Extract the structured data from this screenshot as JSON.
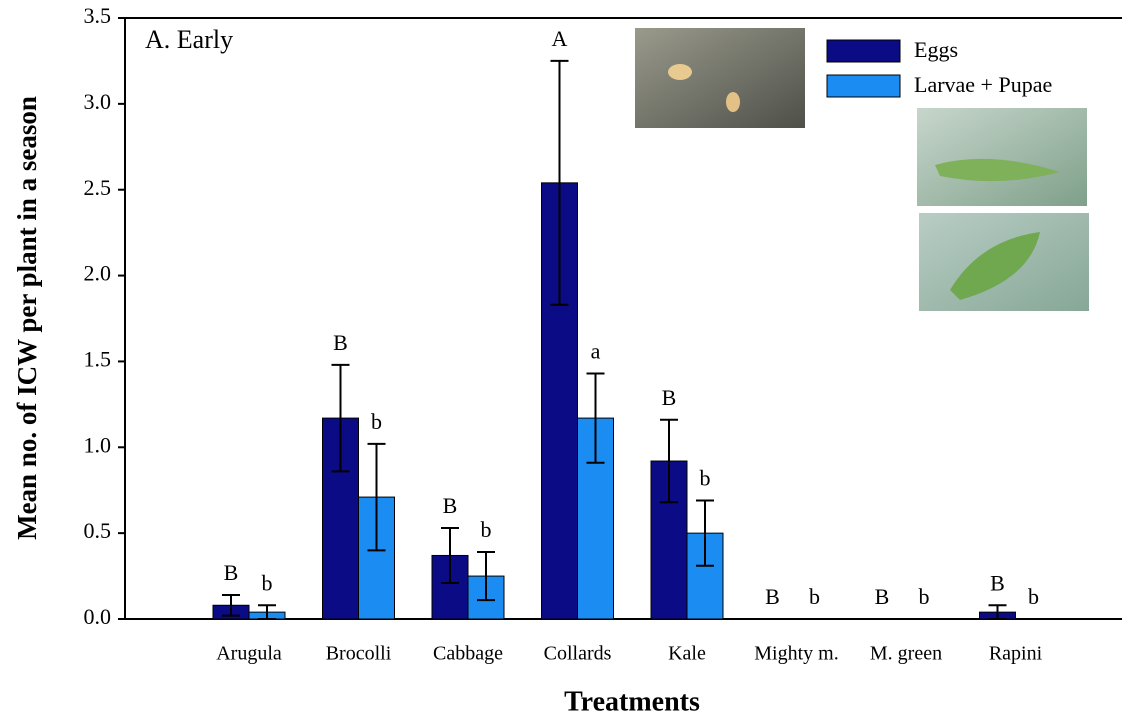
{
  "chart_data": {
    "type": "bar",
    "title": "A. Early",
    "x_label": "Treatments",
    "y_label": "Mean no. of ICW per plant in a season",
    "categories": [
      "Arugula",
      "Brocolli",
      "Cabbage",
      "Collards",
      "Kale",
      "Mighty m.",
      "M. green",
      "Rapini"
    ],
    "series": [
      {
        "name": "Eggs",
        "color": "#0b0b86",
        "values": [
          0.08,
          1.17,
          0.37,
          2.54,
          0.92,
          0,
          0,
          0.04
        ],
        "errors": [
          0.06,
          0.31,
          0.16,
          0.71,
          0.24,
          null,
          null,
          0.04
        ],
        "significance_labels": [
          "B",
          "B",
          "B",
          "A",
          "B",
          "B",
          "B",
          "B"
        ]
      },
      {
        "name": "Larvae + Pupae",
        "color": "#1b8cf2",
        "values": [
          0.04,
          0.71,
          0.25,
          1.17,
          0.5,
          0,
          0,
          0
        ],
        "errors": [
          0.04,
          0.31,
          0.14,
          0.26,
          0.19,
          null,
          null,
          null
        ],
        "significance_labels": [
          "b",
          "b",
          "b",
          "a",
          "b",
          "b",
          "b",
          "b"
        ]
      }
    ],
    "ylim": [
      0,
      3.5
    ],
    "yticks": [
      {
        "value": 0,
        "label": "0.0"
      },
      0.5,
      {
        "value": 1,
        "label": "1.0"
      },
      1.5,
      {
        "value": 2,
        "label": "2.0"
      },
      2.5,
      {
        "value": 3,
        "label": "3.0"
      },
      3.5
    ],
    "legend": "top-right"
  }
}
